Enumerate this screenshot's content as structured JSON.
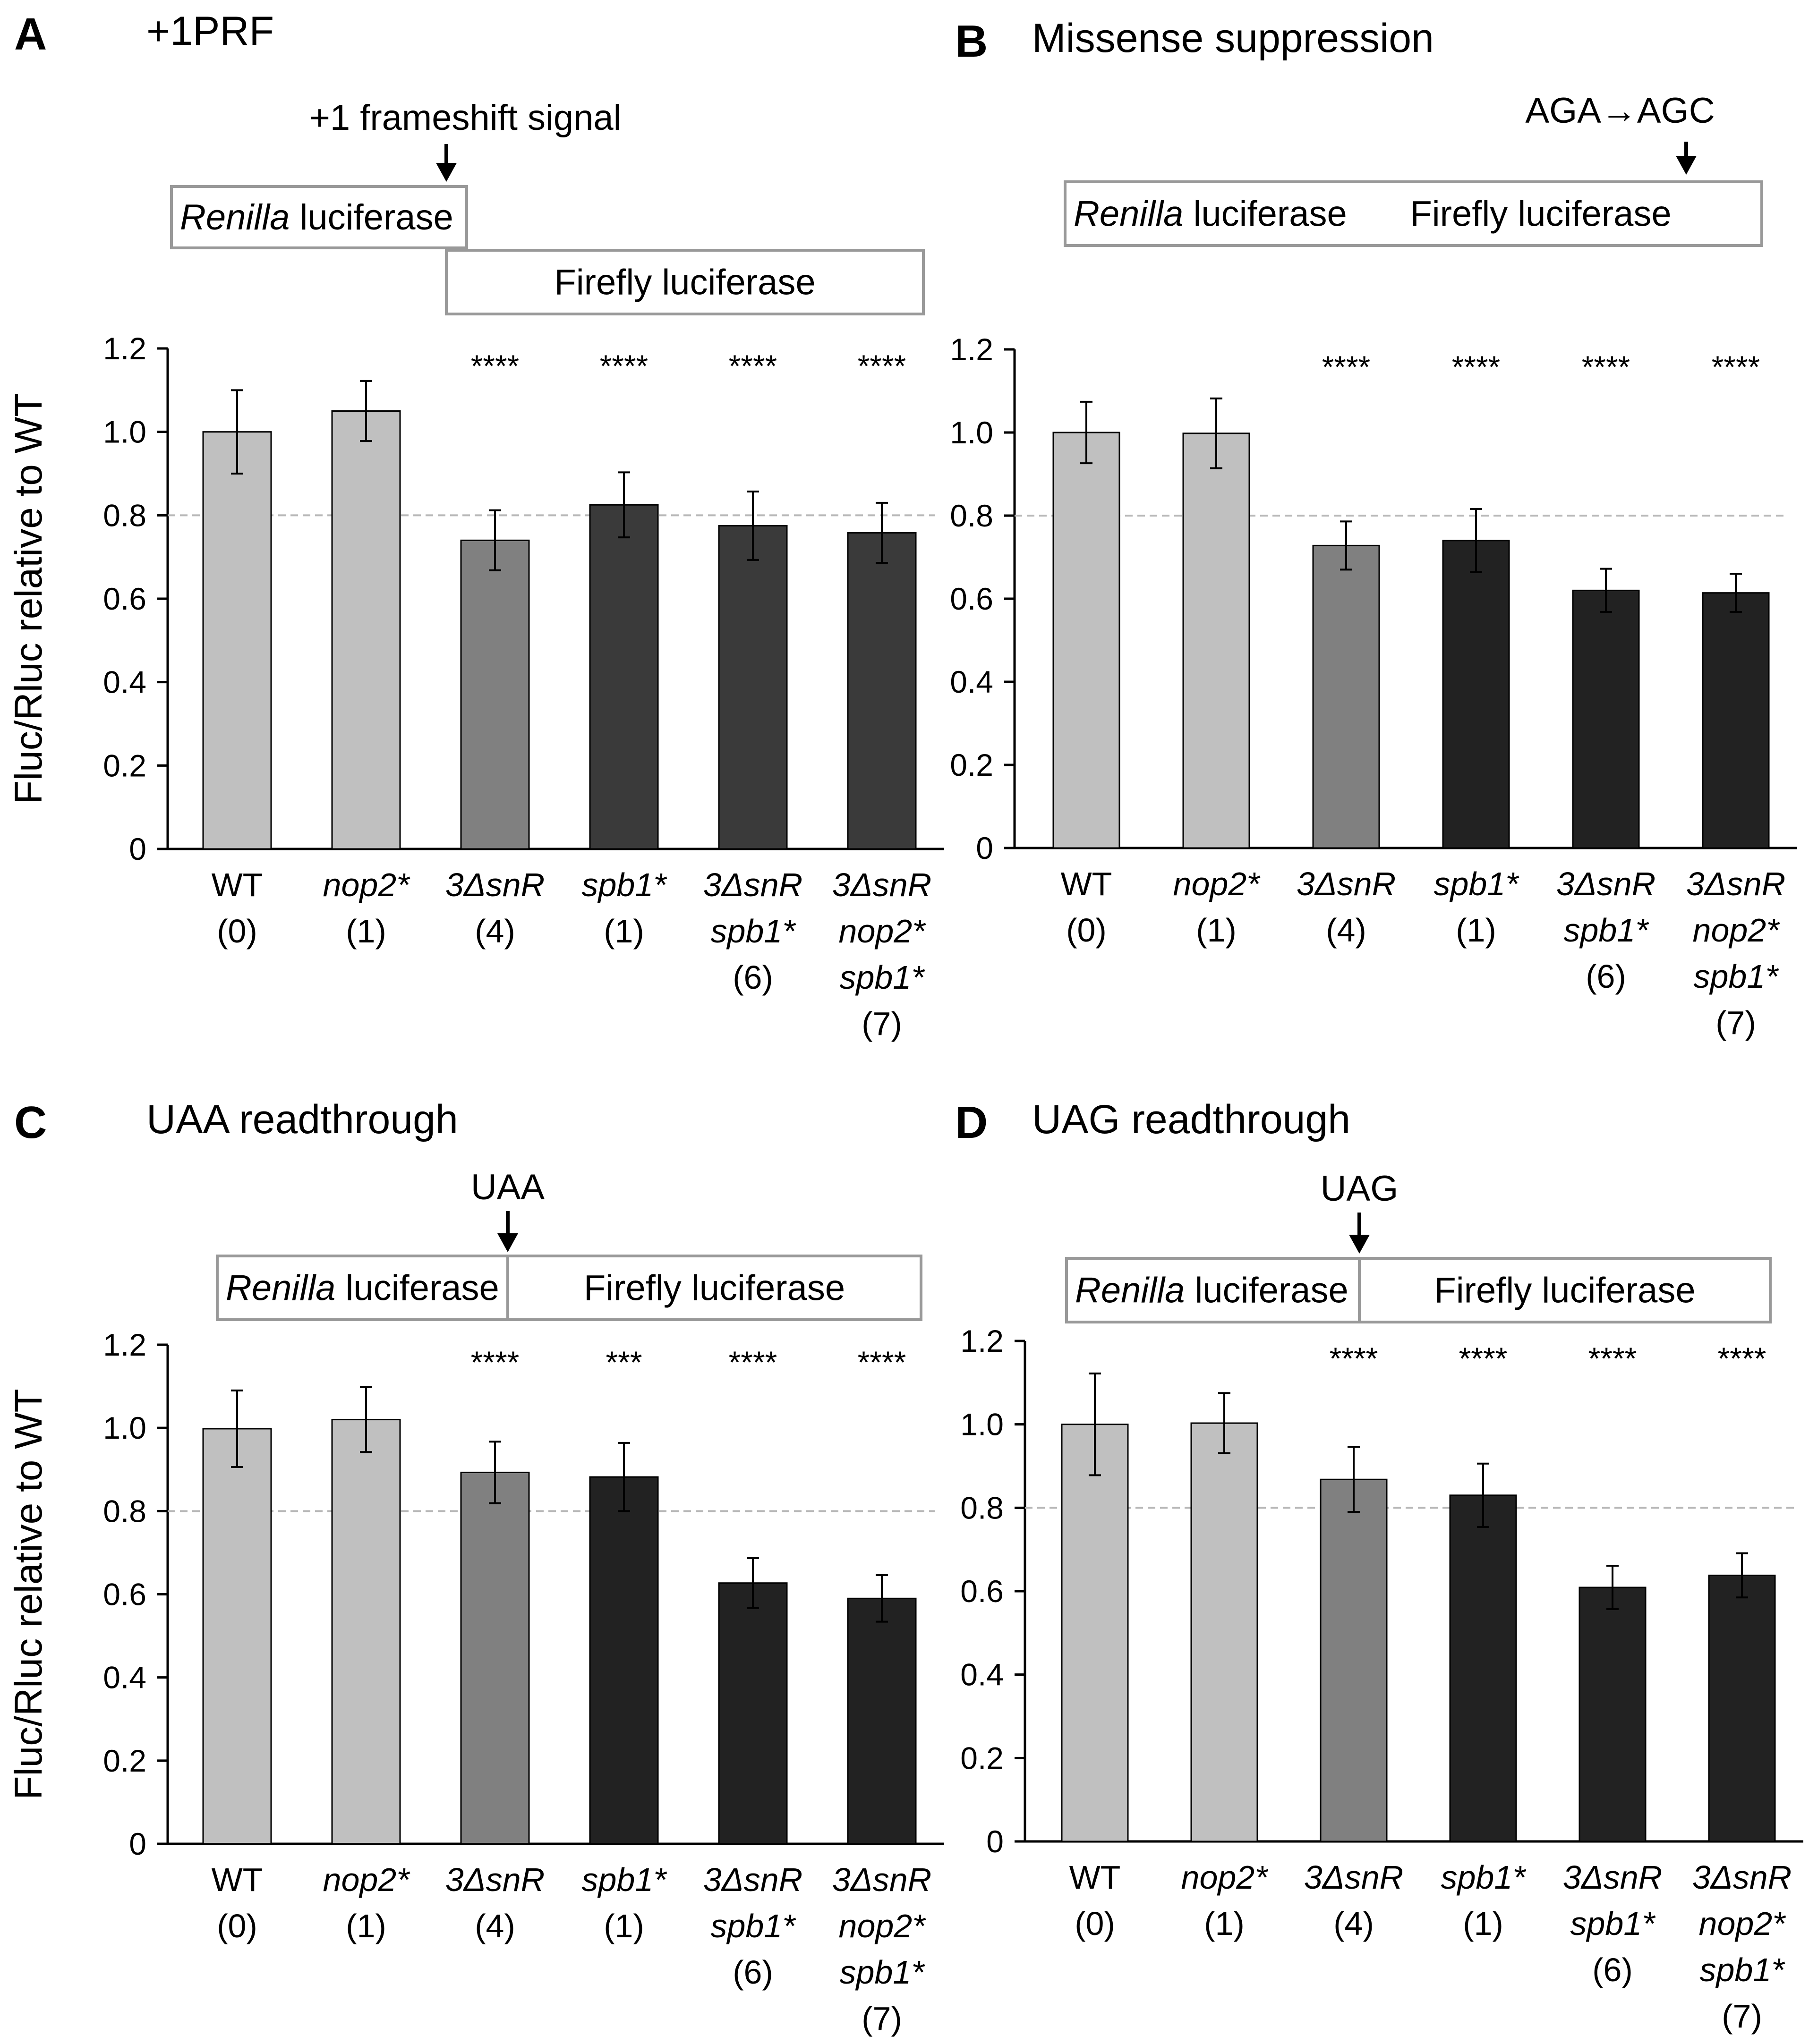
{
  "ylabel": "Fluc/Rluc relative to WT",
  "categories": [
    {
      "lines": [
        {
          "text": "WT",
          "italic": false
        },
        {
          "text": "(0)",
          "italic": false
        }
      ]
    },
    {
      "lines": [
        {
          "text": "nop2*",
          "italic": true
        },
        {
          "text": "(1)",
          "italic": false
        }
      ]
    },
    {
      "lines": [
        {
          "text": "3ΔsnR",
          "italic": true
        },
        {
          "text": "(4)",
          "italic": false
        }
      ]
    },
    {
      "lines": [
        {
          "text": "spb1*",
          "italic": true
        },
        {
          "text": "(1)",
          "italic": false
        }
      ]
    },
    {
      "lines": [
        {
          "text": "3ΔsnR",
          "italic": true
        },
        {
          "text": "spb1*",
          "italic": true
        },
        {
          "text": "(6)",
          "italic": false
        }
      ]
    },
    {
      "lines": [
        {
          "text": "3ΔsnR",
          "italic": true
        },
        {
          "text": "nop2*",
          "italic": true
        },
        {
          "text": "spb1*",
          "italic": true
        },
        {
          "text": "(7)",
          "italic": false
        }
      ]
    }
  ],
  "colors": {
    "light": "#c0c0c0",
    "mid": "#808080",
    "dark": "#3a3a3a",
    "black": "#222222",
    "box_stroke": "#999999",
    "reference_line": "#b8b8b8"
  },
  "construct_labels": {
    "renilla_italic": "Renilla",
    "renilla_rest": " luciferase",
    "firefly": "Firefly luciferase"
  },
  "chart_data": [
    {
      "panel": "A",
      "title": "+1PRF",
      "type": "bar",
      "signal_label": "+1 frameshift signal",
      "construct_layout": "frameshift",
      "ylim": [
        0,
        1.2
      ],
      "yticks": [
        "0",
        "0.2",
        "0.4",
        "0.6",
        "0.8",
        "1.0",
        "1.2"
      ],
      "reference_line": 0.8,
      "values": [
        1.0,
        1.05,
        0.74,
        0.825,
        0.775,
        0.758
      ],
      "errors": [
        0.1,
        0.072,
        0.072,
        0.078,
        0.082,
        0.072
      ],
      "significance": [
        "",
        "",
        "****",
        "****",
        "****",
        "****"
      ],
      "bar_colors": [
        "light",
        "light",
        "mid",
        "dark",
        "dark",
        "dark"
      ]
    },
    {
      "panel": "B",
      "title": "Missense suppression",
      "type": "bar",
      "signal_label": "AGA→AGC",
      "construct_layout": "fusion-right",
      "ylim": [
        0,
        1.2
      ],
      "yticks": [
        "0",
        "0.2",
        "0.4",
        "0.6",
        "0.8",
        "1.0",
        "1.2"
      ],
      "reference_line": 0.8,
      "values": [
        1.0,
        0.998,
        0.728,
        0.74,
        0.62,
        0.614
      ],
      "errors": [
        0.074,
        0.084,
        0.058,
        0.076,
        0.052,
        0.046
      ],
      "significance": [
        "",
        "",
        "****",
        "****",
        "****",
        "****"
      ],
      "bar_colors": [
        "light",
        "light",
        "mid",
        "black",
        "black",
        "black"
      ]
    },
    {
      "panel": "C",
      "title": "UAA readthrough",
      "type": "bar",
      "signal_label": "UAA",
      "construct_layout": "fusion-split",
      "ylim": [
        0,
        1.2
      ],
      "yticks": [
        "0",
        "0.2",
        "0.4",
        "0.6",
        "0.8",
        "1.0",
        "1.2"
      ],
      "reference_line": 0.8,
      "values": [
        0.998,
        1.02,
        0.893,
        0.882,
        0.627,
        0.59
      ],
      "errors": [
        0.092,
        0.078,
        0.074,
        0.082,
        0.06,
        0.056
      ],
      "significance": [
        "",
        "",
        "****",
        "***",
        "****",
        "****"
      ],
      "bar_colors": [
        "light",
        "light",
        "mid",
        "black",
        "black",
        "black"
      ]
    },
    {
      "panel": "D",
      "title": "UAG readthrough",
      "type": "bar",
      "signal_label": "UAG",
      "construct_layout": "fusion-split",
      "ylim": [
        0,
        1.2
      ],
      "yticks": [
        "0",
        "0.2",
        "0.4",
        "0.6",
        "0.8",
        "1.0",
        "1.2"
      ],
      "reference_line": 0.8,
      "values": [
        1.0,
        1.003,
        0.868,
        0.83,
        0.609,
        0.638
      ],
      "errors": [
        0.122,
        0.072,
        0.078,
        0.076,
        0.052,
        0.053
      ],
      "significance": [
        "",
        "",
        "****",
        "****",
        "****",
        "****"
      ],
      "bar_colors": [
        "light",
        "light",
        "mid",
        "black",
        "black",
        "black"
      ]
    }
  ]
}
